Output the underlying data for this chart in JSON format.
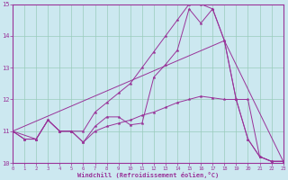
{
  "xlabel": "Windchill (Refroidissement éolien,°C)",
  "xlim": [
    0,
    23
  ],
  "ylim": [
    10,
    15
  ],
  "yticks": [
    10,
    11,
    12,
    13,
    14,
    15
  ],
  "xticks": [
    0,
    1,
    2,
    3,
    4,
    5,
    6,
    7,
    8,
    9,
    10,
    11,
    12,
    13,
    14,
    15,
    16,
    17,
    18,
    19,
    20,
    21,
    22,
    23
  ],
  "bg_color": "#cce8f0",
  "grid_color": "#99ccbb",
  "line_color": "#993399",
  "line1_x": [
    0,
    1,
    2,
    3,
    4,
    5,
    6,
    7,
    8,
    9,
    10,
    11,
    12,
    13,
    14,
    15,
    16,
    17,
    18,
    19,
    20,
    21,
    22,
    23
  ],
  "line1_y": [
    11.0,
    10.75,
    10.75,
    11.35,
    11.0,
    11.0,
    10.65,
    11.15,
    11.45,
    11.45,
    11.2,
    11.25,
    12.7,
    13.1,
    13.55,
    14.85,
    14.4,
    14.85,
    13.85,
    12.0,
    10.75,
    10.2,
    10.05,
    10.05
  ],
  "line2_x": [
    0,
    1,
    2,
    3,
    4,
    5,
    6,
    7,
    8,
    9,
    10,
    11,
    12,
    13,
    14,
    15,
    16,
    17,
    18,
    19,
    20,
    21,
    22,
    23
  ],
  "line2_y": [
    11.0,
    10.75,
    10.75,
    11.35,
    11.0,
    11.0,
    11.0,
    11.6,
    11.9,
    12.2,
    12.5,
    13.0,
    13.5,
    14.0,
    14.5,
    15.0,
    15.0,
    14.85,
    13.85,
    12.0,
    10.75,
    10.2,
    10.05,
    10.05
  ],
  "line3_x": [
    0,
    2,
    3,
    4,
    5,
    6,
    7,
    8,
    9,
    10,
    11,
    12,
    13,
    14,
    15,
    16,
    17,
    18,
    19,
    20,
    21,
    22,
    23
  ],
  "line3_y": [
    11.0,
    10.75,
    11.35,
    11.0,
    11.0,
    10.65,
    11.0,
    11.15,
    11.25,
    11.35,
    11.5,
    11.6,
    11.75,
    11.9,
    12.0,
    12.1,
    12.05,
    12.0,
    12.0,
    12.0,
    10.2,
    10.05,
    10.05
  ],
  "line4_x": [
    0,
    18,
    23
  ],
  "line4_y": [
    11.0,
    13.85,
    10.05
  ]
}
